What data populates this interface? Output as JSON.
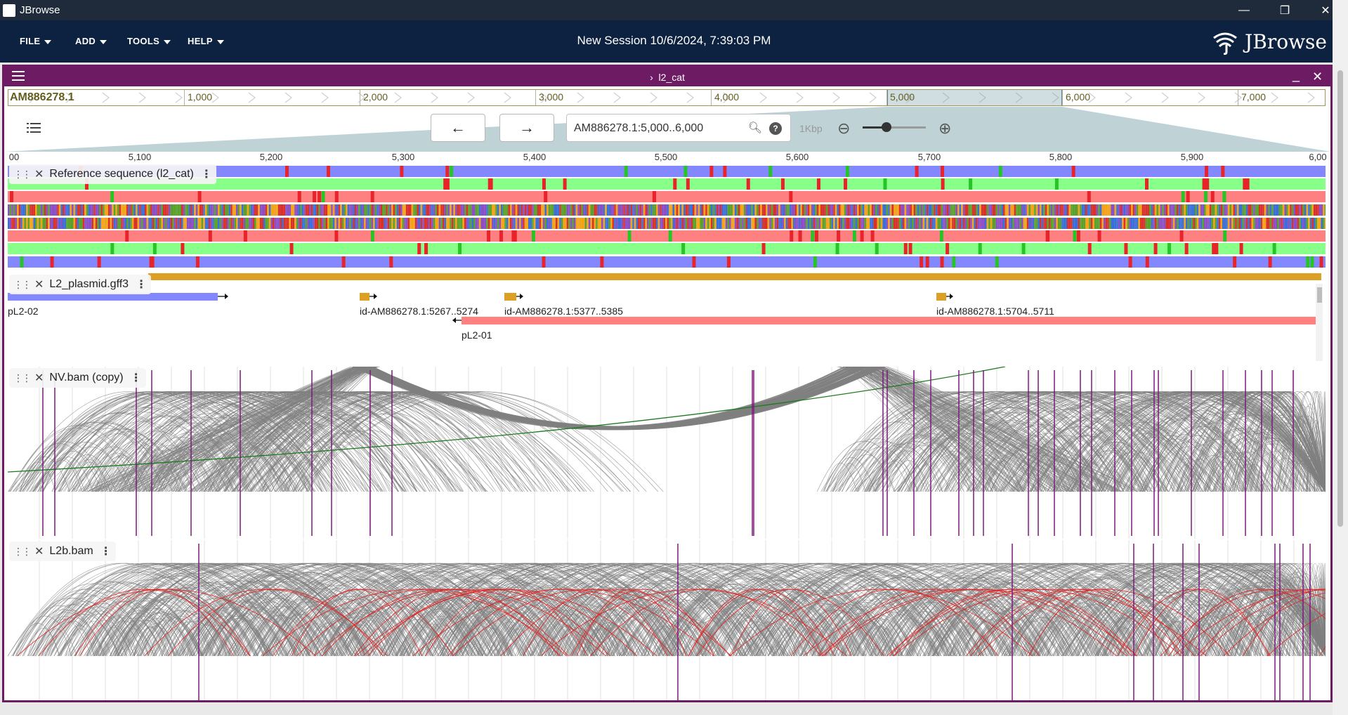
{
  "window": {
    "app_title": "JBrowse",
    "minimize_icon": "minimize-icon",
    "maximize_icon": "restore-icon",
    "close_icon": "close-icon"
  },
  "menubar": {
    "items": [
      "FILE",
      "ADD",
      "TOOLS",
      "HELP"
    ],
    "session_title": "New Session 10/6/2024, 7:39:03 PM",
    "logo_text": "JBrowse"
  },
  "view": {
    "name": "l2_cat",
    "overview": {
      "refname": "AM886278.1",
      "ticks": [
        "1,000",
        "2,000",
        "3,000",
        "4,000",
        "5,000",
        "6,000",
        "7,000"
      ]
    },
    "location": "AM886278.1:5,000..6,000",
    "bp_per_px_label": "1Kbp",
    "zoom_level": 0.35,
    "ruler_labels": [
      "00",
      "5,100",
      "5,200",
      "5,300",
      "5,400",
      "5,500",
      "5,600",
      "5,700",
      "5,800",
      "5,900",
      "6,00"
    ]
  },
  "tracks": [
    {
      "name": "Reference sequence (l2_cat)"
    },
    {
      "name": "L2_plasmid.gff3",
      "features": [
        {
          "label": "pL2-02"
        },
        {
          "label": "id-AM886278.1:5267..5274"
        },
        {
          "label": "id-AM886278.1:5377..5385"
        },
        {
          "label": "pL2-01"
        },
        {
          "label": "id-AM886278.1:5704..5711"
        }
      ]
    },
    {
      "name": "NV.bam (copy)"
    },
    {
      "name": "L2b.bam"
    }
  ],
  "colors": {
    "menubar": "#0d2240",
    "view_border": "#6d1c64",
    "frame_blue": "#8388ff",
    "frame_green": "#88ff88",
    "frame_red": "#ff8080",
    "gene_gold": "#dba024",
    "stop_red": "#e8232a",
    "read_grey": "#808080",
    "arc_red": "#e21f1f",
    "arc_green": "#1e7a1e",
    "coverage_purple": "#7a1a7a"
  }
}
